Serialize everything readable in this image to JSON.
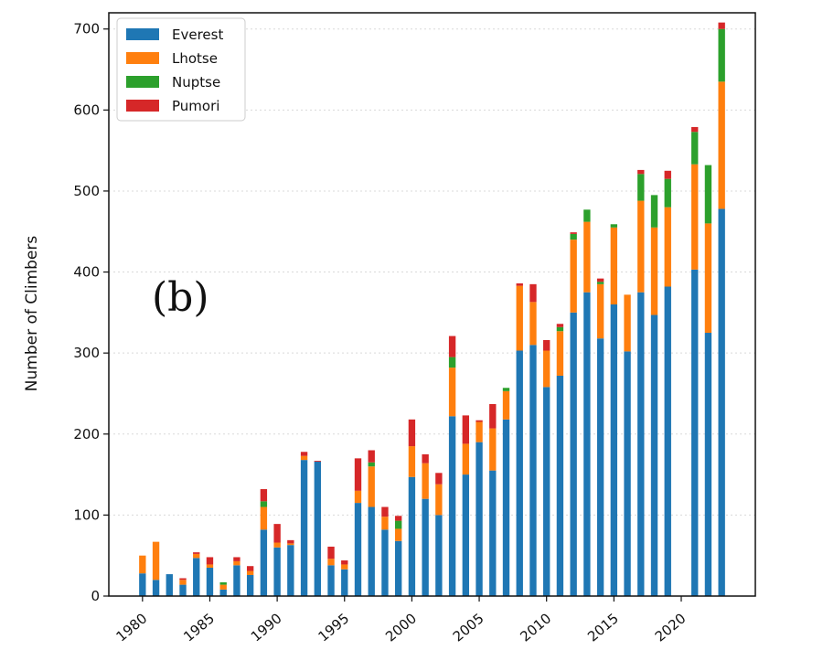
{
  "chart_data": {
    "type": "bar",
    "stacked": true,
    "panel_label": "(b)",
    "title": "",
    "xlabel": "",
    "ylabel": "Number of Climbers",
    "ylim": [
      0,
      720
    ],
    "xlim": [
      1977.5,
      2025.5
    ],
    "yticks": [
      0,
      100,
      200,
      300,
      400,
      500,
      600,
      700
    ],
    "xticks": [
      1980,
      1985,
      1990,
      1995,
      2000,
      2005,
      2010,
      2015,
      2020
    ],
    "grid": "horizontal dotted",
    "legend_position": "top-left",
    "years": [
      1980,
      1981,
      1982,
      1983,
      1984,
      1985,
      1986,
      1987,
      1988,
      1989,
      1990,
      1991,
      1992,
      1993,
      1994,
      1995,
      1996,
      1997,
      1998,
      1999,
      2000,
      2001,
      2002,
      2003,
      2004,
      2005,
      2006,
      2007,
      2008,
      2009,
      2010,
      2011,
      2012,
      2013,
      2014,
      2015,
      2016,
      2017,
      2018,
      2019,
      2020,
      2021,
      2022,
      2023
    ],
    "series": [
      {
        "name": "Everest",
        "color": "#1f77b4",
        "values": [
          28,
          20,
          27,
          14,
          47,
          35,
          8,
          38,
          26,
          82,
          60,
          63,
          168,
          166,
          38,
          33,
          115,
          110,
          82,
          68,
          147,
          120,
          100,
          222,
          150,
          190,
          155,
          218,
          303,
          310,
          258,
          272,
          350,
          375,
          318,
          360,
          302,
          375,
          347,
          382,
          0,
          403,
          325,
          478
        ]
      },
      {
        "name": "Lhotse",
        "color": "#ff7f0e",
        "values": [
          22,
          47,
          0,
          6,
          5,
          4,
          6,
          5,
          5,
          28,
          6,
          2,
          5,
          0,
          8,
          6,
          15,
          50,
          16,
          15,
          38,
          44,
          38,
          60,
          38,
          25,
          52,
          35,
          80,
          53,
          45,
          55,
          90,
          87,
          67,
          95,
          70,
          113,
          108,
          98,
          0,
          130,
          135,
          157
        ]
      },
      {
        "name": "Nuptse",
        "color": "#2ca02c",
        "values": [
          0,
          0,
          0,
          0,
          0,
          0,
          3,
          0,
          0,
          7,
          0,
          0,
          0,
          0,
          0,
          0,
          0,
          5,
          0,
          10,
          0,
          0,
          0,
          13,
          0,
          0,
          0,
          4,
          0,
          0,
          0,
          5,
          7,
          15,
          3,
          4,
          0,
          33,
          40,
          35,
          0,
          40,
          72,
          65
        ]
      },
      {
        "name": "Pumori",
        "color": "#d62728",
        "values": [
          0,
          0,
          0,
          2,
          2,
          9,
          0,
          5,
          6,
          15,
          23,
          4,
          5,
          1,
          15,
          5,
          40,
          15,
          12,
          6,
          33,
          11,
          14,
          26,
          35,
          2,
          30,
          0,
          3,
          22,
          13,
          4,
          2,
          0,
          4,
          0,
          0,
          5,
          0,
          10,
          0,
          6,
          0,
          8
        ]
      }
    ]
  }
}
